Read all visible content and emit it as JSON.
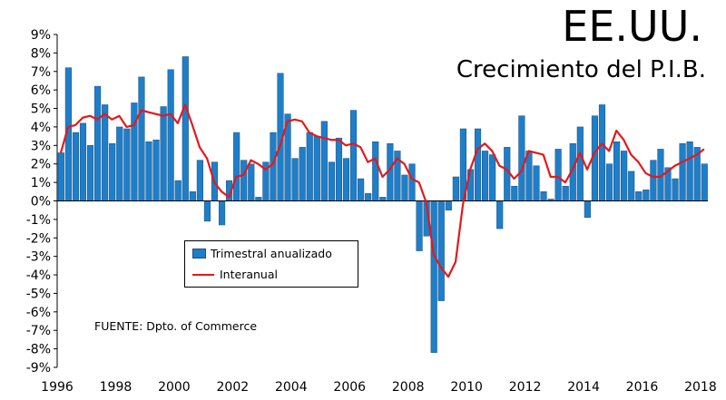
{
  "chart_data": {
    "type": "bar",
    "title": "EE.UU.",
    "subtitle": "Crecimiento del P.I.B.",
    "source": "FUENTE: Dpto. of Commerce",
    "legend_placement": "center-left",
    "grid": false,
    "ylim": [
      -9,
      9
    ],
    "y_ticks": [
      "9%",
      "8%",
      "7%",
      "6%",
      "5%",
      "4%",
      "3%",
      "2%",
      "1%",
      "0%",
      "-1%",
      "-2%",
      "-3%",
      "-4%",
      "-5%",
      "-6%",
      "-7%",
      "-8%",
      "-9%"
    ],
    "x_ticks": [
      "1996",
      "1998",
      "2000",
      "2002",
      "2004",
      "2006",
      "2008",
      "2010",
      "2012",
      "2014",
      "2016",
      "2018"
    ],
    "x_start": 1996.0,
    "x_end": 2018.25,
    "colors": {
      "bar": "#1f7ec8",
      "bar_edge": "#1b4f80",
      "line": "#e3191c"
    },
    "series": [
      {
        "name": "Trimestral anualizado",
        "kind": "bar",
        "x": [
          1996.0,
          1996.25,
          1996.5,
          1996.75,
          1997.0,
          1997.25,
          1997.5,
          1997.75,
          1998.0,
          1998.25,
          1998.5,
          1998.75,
          1999.0,
          1999.25,
          1999.5,
          1999.75,
          2000.0,
          2000.25,
          2000.5,
          2000.75,
          2001.0,
          2001.25,
          2001.5,
          2001.75,
          2002.0,
          2002.25,
          2002.5,
          2002.75,
          2003.0,
          2003.25,
          2003.5,
          2003.75,
          2004.0,
          2004.25,
          2004.5,
          2004.75,
          2005.0,
          2005.25,
          2005.5,
          2005.75,
          2006.0,
          2006.25,
          2006.5,
          2006.75,
          2007.0,
          2007.25,
          2007.5,
          2007.75,
          2008.0,
          2008.25,
          2008.5,
          2008.75,
          2009.0,
          2009.25,
          2009.5,
          2009.75,
          2010.0,
          2010.25,
          2010.5,
          2010.75,
          2011.0,
          2011.25,
          2011.5,
          2011.75,
          2012.0,
          2012.25,
          2012.5,
          2012.75,
          2013.0,
          2013.25,
          2013.5,
          2013.75,
          2014.0,
          2014.25,
          2014.5,
          2014.75,
          2015.0,
          2015.25,
          2015.5,
          2015.75,
          2016.0,
          2016.25,
          2016.5,
          2016.75,
          2017.0,
          2017.25,
          2017.5,
          2017.75,
          2018.0
        ],
        "values": [
          2.6,
          7.2,
          3.7,
          4.2,
          3.0,
          6.2,
          5.2,
          3.1,
          4.0,
          3.9,
          5.3,
          6.7,
          3.2,
          3.3,
          5.1,
          7.1,
          1.1,
          7.8,
          0.5,
          2.2,
          -1.1,
          2.1,
          -1.3,
          1.1,
          3.7,
          2.2,
          2.0,
          0.2,
          2.1,
          3.7,
          6.9,
          4.7,
          2.3,
          2.9,
          3.7,
          3.5,
          4.3,
          2.1,
          3.4,
          2.3,
          4.9,
          1.2,
          0.4,
          3.2,
          0.2,
          3.1,
          2.7,
          1.4,
          2.0,
          -2.7,
          -1.9,
          -8.2,
          -5.4,
          -0.5,
          1.3,
          3.9,
          1.7,
          3.9,
          2.7,
          2.5,
          -1.5,
          2.9,
          0.8,
          4.6,
          2.7,
          1.9,
          0.5,
          0.1,
          2.8,
          0.8,
          3.1,
          4.0,
          -0.9,
          4.6,
          5.2,
          2.0,
          3.2,
          2.7,
          1.6,
          0.5,
          0.6,
          2.2,
          2.8,
          1.8,
          1.2,
          3.1,
          3.2,
          2.9,
          2.0
        ]
      },
      {
        "name": "Interanual",
        "kind": "line",
        "x": [
          1996.0,
          1996.25,
          1996.5,
          1996.75,
          1997.0,
          1997.25,
          1997.5,
          1997.75,
          1998.0,
          1998.25,
          1998.5,
          1998.75,
          1999.0,
          1999.25,
          1999.5,
          1999.75,
          2000.0,
          2000.25,
          2000.5,
          2000.75,
          2001.0,
          2001.25,
          2001.5,
          2001.75,
          2002.0,
          2002.25,
          2002.5,
          2002.75,
          2003.0,
          2003.25,
          2003.5,
          2003.75,
          2004.0,
          2004.25,
          2004.5,
          2004.75,
          2005.0,
          2005.25,
          2005.5,
          2005.75,
          2006.0,
          2006.25,
          2006.5,
          2006.75,
          2007.0,
          2007.25,
          2007.5,
          2007.75,
          2008.0,
          2008.25,
          2008.5,
          2008.75,
          2009.0,
          2009.25,
          2009.5,
          2009.75,
          2010.0,
          2010.25,
          2010.5,
          2010.75,
          2011.0,
          2011.25,
          2011.5,
          2011.75,
          2012.0,
          2012.25,
          2012.5,
          2012.75,
          2013.0,
          2013.25,
          2013.5,
          2013.75,
          2014.0,
          2014.25,
          2014.5,
          2014.75,
          2015.0,
          2015.25,
          2015.5,
          2015.75,
          2016.0,
          2016.25,
          2016.5,
          2016.75,
          2017.0,
          2017.25,
          2017.5,
          2017.75,
          2018.0
        ],
        "values": [
          2.6,
          4.0,
          4.1,
          4.5,
          4.6,
          4.4,
          4.7,
          4.4,
          4.6,
          4.0,
          4.1,
          4.9,
          4.8,
          4.7,
          4.6,
          4.7,
          4.2,
          5.2,
          4.1,
          2.9,
          2.3,
          1.0,
          0.5,
          0.2,
          1.3,
          1.4,
          2.2,
          2.0,
          1.7,
          2.0,
          3.0,
          4.3,
          4.4,
          4.3,
          3.7,
          3.5,
          3.4,
          3.3,
          3.3,
          3.0,
          3.1,
          2.9,
          2.1,
          2.3,
          1.3,
          1.7,
          2.3,
          2.0,
          1.2,
          1.0,
          -0.1,
          -2.9,
          -3.6,
          -4.1,
          -3.3,
          -0.2,
          1.7,
          2.8,
          3.1,
          2.7,
          1.9,
          1.7,
          1.2,
          1.6,
          2.7,
          2.6,
          2.5,
          1.3,
          1.3,
          1.0,
          1.7,
          2.6,
          1.7,
          2.6,
          3.1,
          2.7,
          3.8,
          3.3,
          2.5,
          2.1,
          1.5,
          1.3,
          1.3,
          1.6,
          1.9,
          2.1,
          2.3,
          2.5,
          2.8
        ]
      }
    ]
  }
}
